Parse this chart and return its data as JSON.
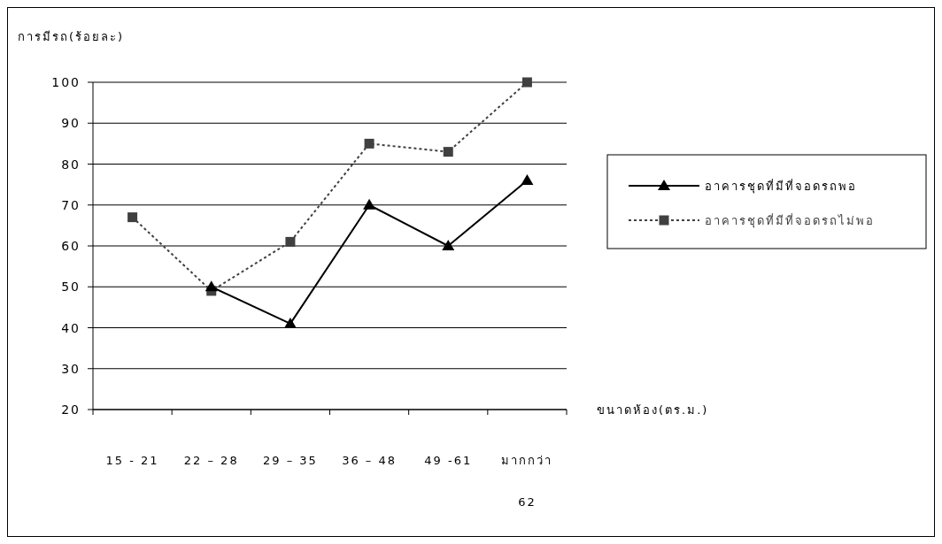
{
  "chart_data": {
    "type": "line",
    "ylabel": "การมีรถ(ร้อยละ)",
    "xlabel": "ขนาดห้อง(ตร.ม.)",
    "categories": [
      "15 - 21",
      "22 – 28",
      "29 – 35",
      "36 – 48",
      "49 -61",
      "มากกว่า 62"
    ],
    "series": [
      {
        "name": "อาคารชุดที่มีที่จอดรถพอ",
        "color": "#000000",
        "marker": "triangle",
        "line_style": "solid",
        "values": [
          null,
          50,
          41,
          70,
          60,
          76
        ]
      },
      {
        "name": "อาคารชุดที่มีที่จอดรถไม่พอ",
        "color": "#404040",
        "marker": "square",
        "line_style": "dotted",
        "values": [
          67,
          49,
          61,
          85,
          83,
          100
        ]
      }
    ],
    "ylim": [
      20,
      100
    ],
    "yticks": [
      20,
      30,
      40,
      50,
      60,
      70,
      80,
      90,
      100
    ],
    "grid": "y",
    "legend": "right"
  }
}
